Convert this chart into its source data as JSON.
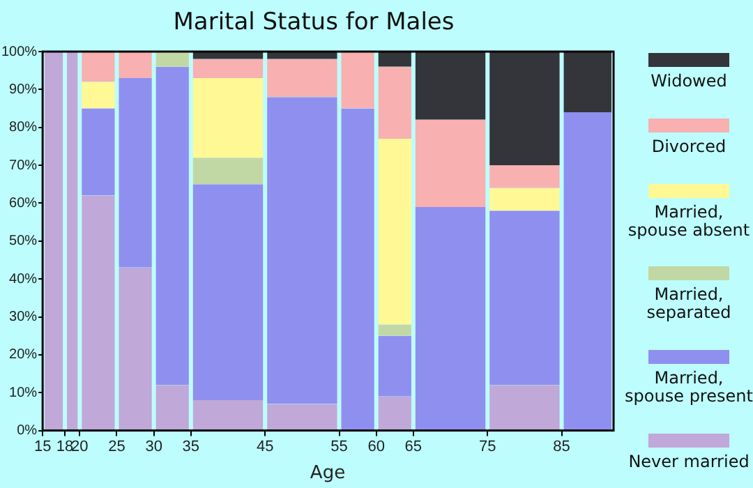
{
  "chart_data": {
    "type": "bar",
    "title": "Marital Status for Males",
    "xlabel": "Age",
    "stacked": true,
    "grid": false,
    "legend": "right",
    "x": [
      16.5,
      19,
      22.5,
      27.5,
      32.5,
      40,
      50,
      57.5,
      62.5,
      70,
      80,
      88.5
    ],
    "xlim": [
      15,
      92
    ],
    "xticks": [
      15,
      18,
      20,
      25,
      30,
      35,
      45,
      55,
      60,
      65,
      75,
      85
    ],
    "ylim": [
      0,
      100
    ],
    "yticks": [
      {
        "value": 0,
        "label": "0%"
      },
      {
        "value": 10,
        "label": "10%"
      },
      {
        "value": 20,
        "label": "20%"
      },
      {
        "value": 30,
        "label": "30%"
      },
      {
        "value": 40,
        "label": "40%"
      },
      {
        "value": 50,
        "label": "50%"
      },
      {
        "value": 60,
        "label": "60%"
      },
      {
        "value": 70,
        "label": "70%"
      },
      {
        "value": 80,
        "label": "80%"
      },
      {
        "value": 90,
        "label": "90%"
      },
      {
        "value": 100,
        "label": "100%"
      }
    ],
    "series": [
      {
        "name": "Never married",
        "color": "#c0a8d8",
        "values": [
          100,
          100,
          62,
          43,
          12,
          8,
          7,
          0,
          9,
          0,
          12,
          0
        ]
      },
      {
        "name": "Married, spouse present",
        "color": "#8f8ff0",
        "values": [
          0,
          0,
          23,
          50,
          84,
          57,
          81,
          85,
          16,
          59,
          46,
          84
        ]
      },
      {
        "name": "Married, separated",
        "color": "#c2d8a4",
        "values": [
          0,
          0,
          0,
          0,
          4,
          7,
          0,
          0,
          3,
          0,
          0,
          0
        ]
      },
      {
        "name": "Married, spouse absent",
        "color": "#fff894",
        "values": [
          0,
          0,
          7,
          0,
          0,
          21,
          0,
          0,
          49,
          0,
          6,
          0
        ]
      },
      {
        "name": "Divorced",
        "color": "#f8b0b0",
        "values": [
          0,
          0,
          8,
          7,
          0,
          5,
          10,
          15,
          19,
          23,
          6,
          0
        ]
      },
      {
        "name": "Widowed",
        "color": "#33353a",
        "values": [
          0,
          0,
          0,
          0,
          0,
          2,
          2,
          0,
          4,
          18,
          30,
          16
        ]
      }
    ]
  }
}
